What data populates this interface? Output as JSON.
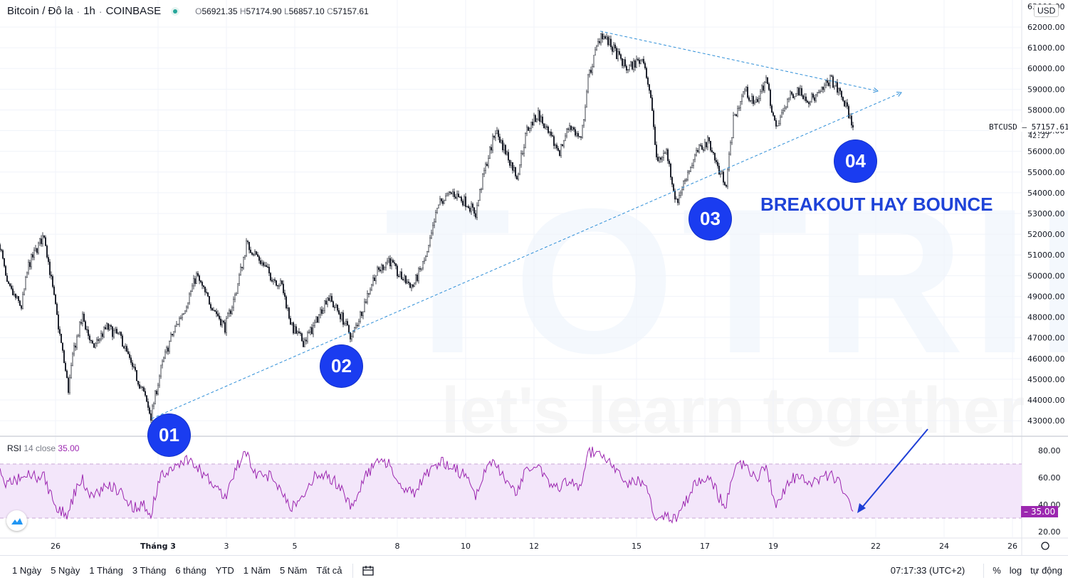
{
  "header": {
    "symbol": "Bitcoin / Đô la",
    "interval": "1h",
    "exchange": "COINBASE",
    "status_color": "#26a69a",
    "ohlc": {
      "o_label": "O",
      "o": "56921.35",
      "h_label": "H",
      "h": "57174.90",
      "l_label": "L",
      "l": "56857.10",
      "c_label": "C",
      "c": "57157.61"
    }
  },
  "currency": "USD",
  "price_tag": {
    "ticker": "BTCUSD",
    "value": "57157.61",
    "countdown": "42:27"
  },
  "rsi": {
    "name": "RSI",
    "params": "14 close",
    "value": "35.00",
    "color": "#9c27b0",
    "upper_band": 70,
    "lower_band": 30,
    "ticks": [
      "80.00",
      "60.00",
      "40.00",
      "20.00"
    ],
    "tick_values": [
      80,
      60,
      40,
      20
    ]
  },
  "price_axis": {
    "ticks": [
      "62000.00",
      "61000.00",
      "60000.00",
      "59000.00",
      "58000.00",
      "57000.00",
      "56000.00",
      "55000.00",
      "54000.00",
      "53000.00",
      "52000.00",
      "51000.00",
      "50000.00",
      "49000.00",
      "48000.00",
      "47000.00",
      "46000.00",
      "45000.00",
      "44000.00",
      "43000.00"
    ],
    "tick_values": [
      62000,
      61000,
      60000,
      59000,
      58000,
      57000,
      56000,
      55000,
      54000,
      53000,
      52000,
      51000,
      50000,
      49000,
      48000,
      47000,
      46000,
      45000,
      44000,
      43000
    ]
  },
  "time_axis": {
    "labels": [
      "26",
      "Tháng 3",
      "3",
      "5",
      "8",
      "10",
      "12",
      "15",
      "17",
      "19",
      "22",
      "24",
      "26"
    ],
    "dates": [
      "02-26 00",
      "03-01 00",
      "03-03 00",
      "03-05 00",
      "03-08 00",
      "03-10 00",
      "03-12 00",
      "03-15 00",
      "03-17 00",
      "03-19 00",
      "03-22 00",
      "03-24 00",
      "03-26 00"
    ]
  },
  "annotations": {
    "points": [
      "01",
      "02",
      "03",
      "04"
    ],
    "headline": "BREAKOUT HAY BOUNCE",
    "accent": "#1a3cf0",
    "trendlines": [
      {
        "from": [
          "02-28 19:30",
          43100
        ],
        "to": [
          "03-22 18:00",
          58840
        ]
      },
      {
        "from": [
          "03-13 22:30",
          61800
        ],
        "to": [
          "03-22 01:30",
          58910
        ]
      }
    ],
    "arrow_color": "#1f3fd6"
  },
  "watermark": {
    "brand": "TOTRIEU",
    "slogan": "let's learn together"
  },
  "bottom_bar": {
    "ranges": [
      "1 Ngày",
      "5 Ngày",
      "1 Tháng",
      "3 Tháng",
      "6 tháng",
      "YTD",
      "1 Năm",
      "5 Năm",
      "Tất cả"
    ],
    "time": "07:17:33 (UTC+2)",
    "percent": "%",
    "log": "log",
    "auto": "tự động"
  },
  "chart_data": {
    "type": "candlestick",
    "year": 2021,
    "interval": "1h",
    "ylim": [
      43000,
      62000
    ],
    "rsi_ylim": [
      20,
      80
    ],
    "keypoints_columns": [
      "time",
      "close",
      "rsi"
    ],
    "keypoints": [
      [
        "02-24 09",
        51500,
        63
      ],
      [
        "02-24 14",
        49500,
        55
      ],
      [
        "02-25 00",
        48500,
        60
      ],
      [
        "02-25 05",
        50500,
        62
      ],
      [
        "02-25 16",
        52000,
        60
      ],
      [
        "02-26 01",
        48000,
        36
      ],
      [
        "02-26 09",
        44500,
        33
      ],
      [
        "02-26 13",
        46500,
        48
      ],
      [
        "02-26 19",
        48000,
        58
      ],
      [
        "02-27 02",
        46500,
        45
      ],
      [
        "02-27 12",
        47500,
        55
      ],
      [
        "02-27 22",
        47000,
        50
      ],
      [
        "02-28 06",
        45500,
        38
      ],
      [
        "02-28 13",
        44500,
        40
      ],
      [
        "02-28 19",
        43200,
        34
      ],
      [
        "03-01 02",
        45500,
        62
      ],
      [
        "03-01 09",
        47000,
        65
      ],
      [
        "03-01 19",
        48500,
        74
      ],
      [
        "03-02 03",
        50000,
        68
      ],
      [
        "03-02 10",
        49000,
        60
      ],
      [
        "03-02 23",
        47500,
        45
      ],
      [
        "03-03 06",
        49000,
        65
      ],
      [
        "03-03 14",
        51500,
        80
      ],
      [
        "03-03 21",
        51000,
        60
      ],
      [
        "03-04 07",
        50000,
        62
      ],
      [
        "03-04 15",
        49500,
        50
      ],
      [
        "03-04 22",
        47500,
        38
      ],
      [
        "03-05 06",
        46800,
        45
      ],
      [
        "03-05 13",
        47500,
        60
      ],
      [
        "03-05 23",
        49000,
        62
      ],
      [
        "03-06 09",
        48000,
        52
      ],
      [
        "03-06 16",
        47000,
        38
      ],
      [
        "03-07 00",
        48500,
        58
      ],
      [
        "03-07 08",
        50000,
        70
      ],
      [
        "03-07 18",
        50800,
        72
      ],
      [
        "03-08 01",
        50000,
        55
      ],
      [
        "03-08 11",
        49500,
        48
      ],
      [
        "03-08 21",
        51000,
        62
      ],
      [
        "03-09 05",
        53500,
        72
      ],
      [
        "03-09 15",
        54000,
        68
      ],
      [
        "03-10 01",
        53500,
        60
      ],
      [
        "03-10 07",
        53000,
        45
      ],
      [
        "03-10 13",
        55000,
        65
      ],
      [
        "03-10 21",
        57000,
        72
      ],
      [
        "03-11 04",
        56000,
        58
      ],
      [
        "03-11 12",
        54800,
        48
      ],
      [
        "03-11 19",
        57000,
        68
      ],
      [
        "03-12 03",
        57800,
        70
      ],
      [
        "03-12 10",
        56800,
        55
      ],
      [
        "03-12 18",
        56000,
        52
      ],
      [
        "03-13 01",
        57300,
        58
      ],
      [
        "03-13 09",
        56500,
        50
      ],
      [
        "03-13 14",
        59500,
        78
      ],
      [
        "03-13 23",
        61700,
        80
      ],
      [
        "03-14 07",
        61000,
        68
      ],
      [
        "03-14 17",
        60000,
        55
      ],
      [
        "03-15 05",
        60500,
        58
      ],
      [
        "03-15 11",
        58000,
        38
      ],
      [
        "03-15 14",
        55500,
        28
      ],
      [
        "03-15 21",
        56000,
        32
      ],
      [
        "03-16 04",
        53500,
        30
      ],
      [
        "03-16 12",
        55000,
        45
      ],
      [
        "03-16 19",
        56000,
        58
      ],
      [
        "03-17 03",
        56500,
        62
      ],
      [
        "03-17 10",
        55000,
        45
      ],
      [
        "03-17 15",
        54500,
        40
      ],
      [
        "03-17 20",
        57500,
        65
      ],
      [
        "03-18 04",
        59000,
        72
      ],
      [
        "03-18 11",
        58200,
        58
      ],
      [
        "03-18 19",
        59500,
        68
      ],
      [
        "03-19 02",
        57000,
        40
      ],
      [
        "03-19 10",
        58500,
        55
      ],
      [
        "03-19 17",
        59000,
        62
      ],
      [
        "03-20 01",
        58500,
        55
      ],
      [
        "03-20 08",
        58700,
        58
      ],
      [
        "03-20 16",
        59500,
        62
      ],
      [
        "03-20 23",
        58800,
        55
      ],
      [
        "03-21 04",
        58000,
        45
      ],
      [
        "03-21 08",
        57157.61,
        35
      ]
    ]
  }
}
